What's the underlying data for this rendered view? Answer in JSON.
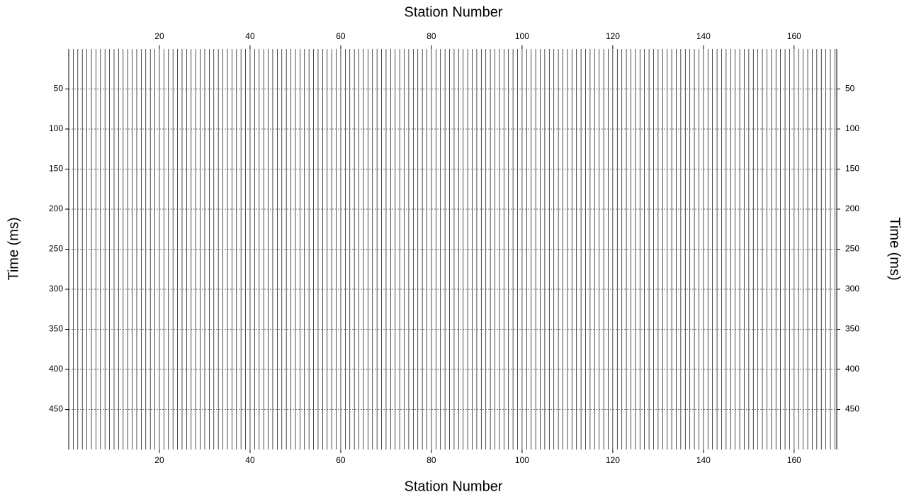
{
  "chart_data": {
    "type": "seismic",
    "x_label": "Station Number",
    "y_label": "Time (ms)",
    "xlim": [
      0,
      169.4
    ],
    "xticks": [
      20,
      40,
      60,
      80,
      100,
      120,
      140,
      160
    ],
    "ylim": [
      0,
      500
    ],
    "yticks": [
      50,
      100,
      150,
      200,
      250,
      300,
      350,
      400,
      450
    ],
    "y_inverted": true,
    "grid": true,
    "color": "#000000"
  }
}
